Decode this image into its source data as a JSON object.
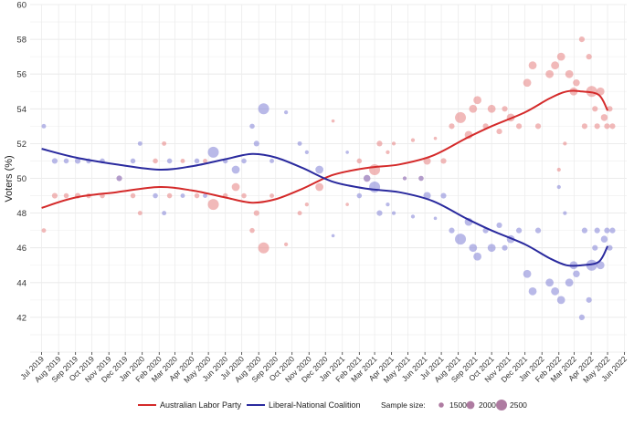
{
  "chart_data": {
    "type": "scatter",
    "title": "",
    "xlabel": "",
    "ylabel": "Voters (%)",
    "ylim": [
      40,
      60
    ],
    "y_ticks": [
      42,
      44,
      46,
      48,
      50,
      52,
      54,
      56,
      58,
      60
    ],
    "x_range": [
      "2019-06-10",
      "2022-06-05"
    ],
    "x_ticks": [
      "Jul 2019",
      "Aug 2019",
      "Sep 2019",
      "Oct 2019",
      "Nov 2019",
      "Dec 2019",
      "Jan 2020",
      "Feb 2020",
      "Mar 2020",
      "Apr 2020",
      "May 2020",
      "Jun 2020",
      "Jul 2020",
      "Aug 2020",
      "Sep 2020",
      "Oct 2020",
      "Nov 2020",
      "Dec 2020",
      "Jan 2021",
      "Feb 2021",
      "Mar 2021",
      "Apr 2021",
      "May 2021",
      "Jun 2021",
      "Jul 2021",
      "Aug 2021",
      "Sep 2021",
      "Oct 2021",
      "Nov 2021",
      "Dec 2021",
      "Jan 2022",
      "Feb 2022",
      "Mar 2022",
      "Apr 2022",
      "May 2022",
      "Jun 2022"
    ],
    "grid": true,
    "legend_position": "bottom",
    "colors": {
      "Australian Labor Party": "#d42a2a",
      "Liberal-National Coalition": "#2a2a9e",
      "alp_points": "#e88a8a",
      "lnp_points": "#8a8ad8",
      "overlap_points": "#9a5a8a"
    },
    "series": [
      {
        "name": "Australian Labor Party",
        "trend": [
          [
            "2019-07-01",
            48.3
          ],
          [
            "2019-09-01",
            48.9
          ],
          [
            "2019-11-15",
            49.2
          ],
          [
            "2020-02-01",
            49.5
          ],
          [
            "2020-04-01",
            49.3
          ],
          [
            "2020-06-01",
            48.9
          ],
          [
            "2020-07-20",
            48.6
          ],
          [
            "2020-09-01",
            48.8
          ],
          [
            "2020-10-20",
            49.4
          ],
          [
            "2020-12-15",
            50.2
          ],
          [
            "2021-02-15",
            50.6
          ],
          [
            "2021-04-15",
            50.8
          ],
          [
            "2021-06-15",
            51.3
          ],
          [
            "2021-08-15",
            52.3
          ],
          [
            "2021-10-01",
            53.0
          ],
          [
            "2021-12-01",
            53.8
          ],
          [
            "2022-01-15",
            54.6
          ],
          [
            "2022-02-15",
            55.0
          ],
          [
            "2022-03-15",
            55.0
          ],
          [
            "2022-04-15",
            54.8
          ],
          [
            "2022-05-01",
            53.9
          ]
        ],
        "points": [
          [
            "2019-07-05",
            47,
            1400
          ],
          [
            "2019-07-25",
            49,
            1600
          ],
          [
            "2019-08-15",
            49,
            1500
          ],
          [
            "2019-09-05",
            49,
            1600
          ],
          [
            "2019-09-25",
            49,
            1500
          ],
          [
            "2019-10-20",
            49,
            1500
          ],
          [
            "2019-11-20",
            50,
            1600
          ],
          [
            "2019-12-15",
            49,
            1500
          ],
          [
            "2019-12-28",
            48,
            1400
          ],
          [
            "2020-01-25",
            51,
            1500
          ],
          [
            "2020-02-10",
            52,
            1400
          ],
          [
            "2020-02-20",
            49,
            1500
          ],
          [
            "2020-03-15",
            51,
            1400
          ],
          [
            "2020-04-10",
            49,
            1500
          ],
          [
            "2020-04-25",
            51,
            1400
          ],
          [
            "2020-05-10",
            48.5,
            2500
          ],
          [
            "2020-06-01",
            49,
            1500
          ],
          [
            "2020-06-20",
            49.5,
            2000
          ],
          [
            "2020-07-05",
            49,
            1500
          ],
          [
            "2020-07-20",
            47,
            1500
          ],
          [
            "2020-07-28",
            48,
            1600
          ],
          [
            "2020-08-10",
            46,
            2500
          ],
          [
            "2020-08-25",
            49,
            1400
          ],
          [
            "2020-09-20",
            46.2,
            1300
          ],
          [
            "2020-10-15",
            48,
            1400
          ],
          [
            "2020-10-28",
            48.5,
            1300
          ],
          [
            "2020-11-20",
            49.5,
            2000
          ],
          [
            "2020-12-15",
            53.3,
            1200
          ],
          [
            "2021-01-10",
            48.5,
            1200
          ],
          [
            "2021-02-01",
            51,
            1500
          ],
          [
            "2021-02-15",
            50,
            1800
          ],
          [
            "2021-03-01",
            50.5,
            2500
          ],
          [
            "2021-03-10",
            52,
            1600
          ],
          [
            "2021-03-25",
            51.5,
            1300
          ],
          [
            "2021-04-05",
            52,
            1300
          ],
          [
            "2021-04-25",
            50,
            1300
          ],
          [
            "2021-05-10",
            52.2,
            1300
          ],
          [
            "2021-05-25",
            50,
            1500
          ],
          [
            "2021-06-05",
            51,
            1900
          ],
          [
            "2021-06-20",
            52.3,
            1200
          ],
          [
            "2021-07-05",
            51,
            1600
          ],
          [
            "2021-07-20",
            53,
            1600
          ],
          [
            "2021-08-05",
            53.5,
            2500
          ],
          [
            "2021-08-20",
            52.5,
            2000
          ],
          [
            "2021-08-28",
            54,
            2000
          ],
          [
            "2021-09-05",
            54.5,
            2000
          ],
          [
            "2021-09-20",
            53,
            1600
          ],
          [
            "2021-10-01",
            54,
            2000
          ],
          [
            "2021-10-15",
            52.7,
            1600
          ],
          [
            "2021-10-25",
            54,
            1600
          ],
          [
            "2021-11-05",
            53.5,
            2000
          ],
          [
            "2021-11-20",
            53,
            1600
          ],
          [
            "2021-12-05",
            55.5,
            2000
          ],
          [
            "2021-12-15",
            56.5,
            2000
          ],
          [
            "2021-12-25",
            53,
            1600
          ],
          [
            "2022-01-15",
            56,
            2000
          ],
          [
            "2022-01-25",
            56.5,
            2000
          ],
          [
            "2022-02-01",
            50.5,
            1300
          ],
          [
            "2022-02-05",
            57,
            2000
          ],
          [
            "2022-02-12",
            52,
            1300
          ],
          [
            "2022-02-20",
            56,
            2000
          ],
          [
            "2022-02-28",
            55,
            2000
          ],
          [
            "2022-03-05",
            55.5,
            1800
          ],
          [
            "2022-03-15",
            58,
            1600
          ],
          [
            "2022-03-20",
            53,
            1600
          ],
          [
            "2022-03-28",
            57,
            1600
          ],
          [
            "2022-04-02",
            55,
            2500
          ],
          [
            "2022-04-08",
            54,
            1600
          ],
          [
            "2022-04-12",
            53,
            1600
          ],
          [
            "2022-04-18",
            55,
            2000
          ],
          [
            "2022-04-25",
            53.5,
            1800
          ],
          [
            "2022-04-30",
            53,
            1600
          ],
          [
            "2022-05-05",
            54,
            1600
          ],
          [
            "2022-05-10",
            53,
            1600
          ]
        ]
      },
      {
        "name": "Liberal-National Coalition",
        "trend": [
          [
            "2019-07-01",
            51.7
          ],
          [
            "2019-09-01",
            51.2
          ],
          [
            "2019-11-15",
            50.8
          ],
          [
            "2020-02-01",
            50.5
          ],
          [
            "2020-04-01",
            50.7
          ],
          [
            "2020-06-01",
            51.1
          ],
          [
            "2020-07-20",
            51.4
          ],
          [
            "2020-09-01",
            51.2
          ],
          [
            "2020-10-20",
            50.6
          ],
          [
            "2020-12-15",
            49.8
          ],
          [
            "2021-02-15",
            49.4
          ],
          [
            "2021-04-15",
            49.2
          ],
          [
            "2021-06-15",
            48.7
          ],
          [
            "2021-08-15",
            47.7
          ],
          [
            "2021-10-01",
            47.0
          ],
          [
            "2021-12-01",
            46.2
          ],
          [
            "2022-01-15",
            45.4
          ],
          [
            "2022-02-15",
            45.0
          ],
          [
            "2022-03-15",
            45.0
          ],
          [
            "2022-04-15",
            45.2
          ],
          [
            "2022-05-01",
            46.1
          ]
        ],
        "points": [
          [
            "2019-07-05",
            53,
            1400
          ],
          [
            "2019-07-25",
            51,
            1600
          ],
          [
            "2019-08-15",
            51,
            1500
          ],
          [
            "2019-09-05",
            51,
            1600
          ],
          [
            "2019-09-25",
            51,
            1500
          ],
          [
            "2019-10-20",
            51,
            1500
          ],
          [
            "2019-11-20",
            50,
            1600
          ],
          [
            "2019-12-15",
            51,
            1500
          ],
          [
            "2019-12-28",
            52,
            1400
          ],
          [
            "2020-01-25",
            49,
            1500
          ],
          [
            "2020-02-10",
            48,
            1400
          ],
          [
            "2020-02-20",
            51,
            1500
          ],
          [
            "2020-03-15",
            49,
            1400
          ],
          [
            "2020-04-10",
            51,
            1500
          ],
          [
            "2020-04-25",
            49,
            1400
          ],
          [
            "2020-05-10",
            51.5,
            2500
          ],
          [
            "2020-06-01",
            51,
            1500
          ],
          [
            "2020-06-20",
            50.5,
            2000
          ],
          [
            "2020-07-05",
            51,
            1500
          ],
          [
            "2020-07-20",
            53,
            1500
          ],
          [
            "2020-07-28",
            52,
            1600
          ],
          [
            "2020-08-10",
            54,
            2500
          ],
          [
            "2020-08-25",
            51,
            1400
          ],
          [
            "2020-09-20",
            53.8,
            1300
          ],
          [
            "2020-10-15",
            52,
            1400
          ],
          [
            "2020-10-28",
            51.5,
            1300
          ],
          [
            "2020-11-20",
            50.5,
            2000
          ],
          [
            "2020-12-15",
            46.7,
            1200
          ],
          [
            "2021-01-10",
            51.5,
            1200
          ],
          [
            "2021-02-01",
            49,
            1500
          ],
          [
            "2021-02-15",
            50,
            1800
          ],
          [
            "2021-03-01",
            49.5,
            2500
          ],
          [
            "2021-03-10",
            48,
            1600
          ],
          [
            "2021-03-25",
            48.5,
            1300
          ],
          [
            "2021-04-05",
            48,
            1300
          ],
          [
            "2021-04-25",
            50,
            1300
          ],
          [
            "2021-05-10",
            47.8,
            1300
          ],
          [
            "2021-05-25",
            50,
            1500
          ],
          [
            "2021-06-05",
            49,
            1900
          ],
          [
            "2021-06-20",
            47.7,
            1200
          ],
          [
            "2021-07-05",
            49,
            1600
          ],
          [
            "2021-07-20",
            47,
            1600
          ],
          [
            "2021-08-05",
            46.5,
            2500
          ],
          [
            "2021-08-20",
            47.5,
            2000
          ],
          [
            "2021-08-28",
            46,
            2000
          ],
          [
            "2021-09-05",
            45.5,
            2000
          ],
          [
            "2021-09-20",
            47,
            1600
          ],
          [
            "2021-10-01",
            46,
            2000
          ],
          [
            "2021-10-15",
            47.3,
            1600
          ],
          [
            "2021-10-25",
            46,
            1600
          ],
          [
            "2021-11-05",
            46.5,
            2000
          ],
          [
            "2021-11-20",
            47,
            1600
          ],
          [
            "2021-12-05",
            44.5,
            2000
          ],
          [
            "2021-12-15",
            43.5,
            2000
          ],
          [
            "2021-12-25",
            47,
            1600
          ],
          [
            "2022-01-15",
            44,
            2000
          ],
          [
            "2022-01-25",
            43.5,
            2000
          ],
          [
            "2022-02-01",
            49.5,
            1300
          ],
          [
            "2022-02-05",
            43,
            2000
          ],
          [
            "2022-02-12",
            48,
            1300
          ],
          [
            "2022-02-20",
            44,
            2000
          ],
          [
            "2022-02-28",
            45,
            2000
          ],
          [
            "2022-03-05",
            44.5,
            1800
          ],
          [
            "2022-03-15",
            42,
            1600
          ],
          [
            "2022-03-20",
            47,
            1600
          ],
          [
            "2022-03-28",
            43,
            1600
          ],
          [
            "2022-04-02",
            45,
            2500
          ],
          [
            "2022-04-08",
            46,
            1600
          ],
          [
            "2022-04-12",
            47,
            1600
          ],
          [
            "2022-04-18",
            45,
            2000
          ],
          [
            "2022-04-25",
            46.5,
            1800
          ],
          [
            "2022-04-30",
            47,
            1600
          ],
          [
            "2022-05-05",
            46,
            1600
          ],
          [
            "2022-05-10",
            47,
            1600
          ]
        ]
      }
    ],
    "legend": {
      "series_labels": [
        "Australian Labor Party",
        "Liberal-National Coalition"
      ],
      "size_title": "Sample size:",
      "size_labels": [
        "1500",
        "2000",
        "2500"
      ]
    }
  }
}
